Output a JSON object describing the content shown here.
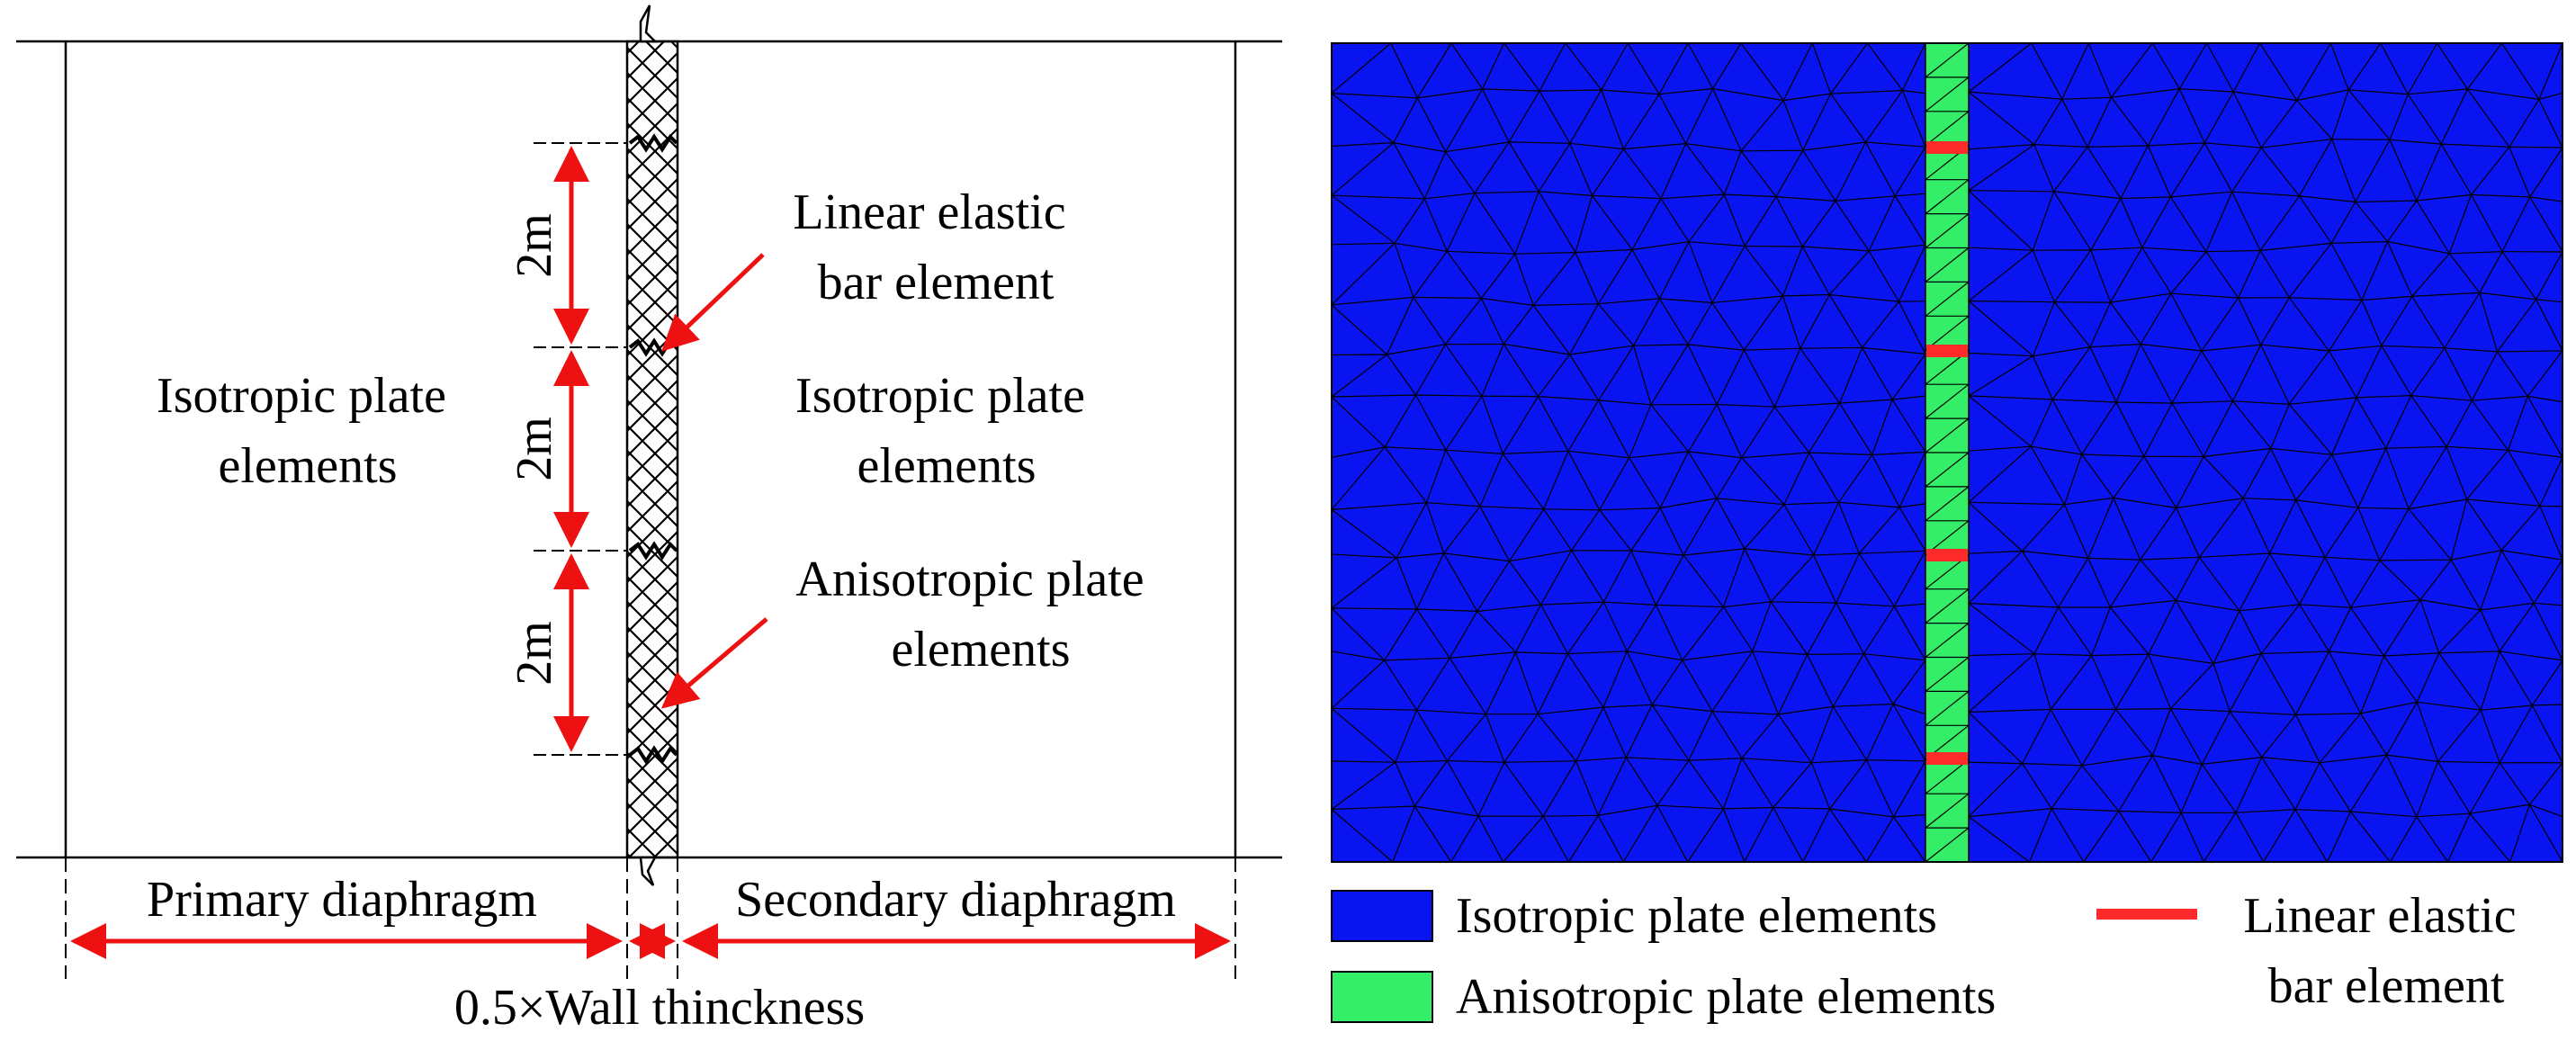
{
  "left_panel": {
    "dimension_labels": [
      "2m",
      "2m",
      "2m"
    ],
    "left_region_label": [
      "Isotropic plate",
      "elements"
    ],
    "right_region_label": [
      "Isotropic plate",
      "elements"
    ],
    "bar_callout": [
      "Linear elastic",
      "bar element"
    ],
    "aniso_callout": [
      "Anisotropic plate",
      "elements"
    ],
    "primary_label": "Primary diaphragm",
    "secondary_label": "Secondary diaphragm",
    "thickness_label": "0.5×Wall thinckness"
  },
  "right_panel": {
    "legend": {
      "isotropic": "Isotropic plate elements",
      "anisotropic": "Anisotropic plate elements",
      "bar": [
        "Linear elastic",
        "bar element"
      ]
    }
  },
  "colors": {
    "isotropic": "#0a14f0",
    "anisotropic": "#33ee66",
    "bar": "#ff2a2a",
    "arrow": "#ee1111",
    "mesh_line": "#000000"
  }
}
